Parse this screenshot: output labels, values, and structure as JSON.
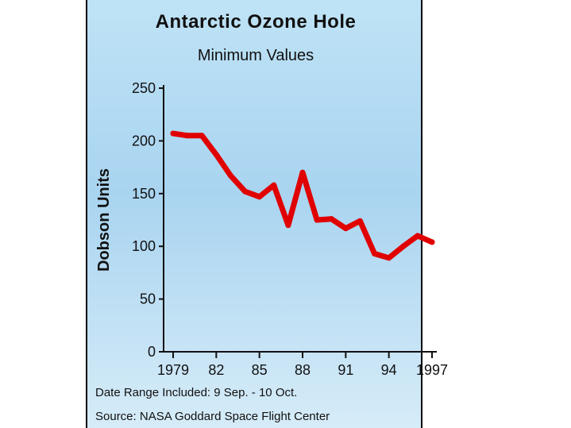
{
  "chart_data": {
    "type": "line",
    "title": "Antarctic Ozone Hole",
    "subtitle": "Minimum Values",
    "ylabel": "Dobson Units",
    "xlabel": "",
    "ylim": [
      0,
      250
    ],
    "xlim": [
      1979,
      1997
    ],
    "y_ticks": [
      0,
      50,
      100,
      150,
      200,
      250
    ],
    "x_ticks": [
      {
        "value": 1979,
        "label": "1979"
      },
      {
        "value": 1982,
        "label": "82"
      },
      {
        "value": 1985,
        "label": "85"
      },
      {
        "value": 1988,
        "label": "88"
      },
      {
        "value": 1991,
        "label": "91"
      },
      {
        "value": 1994,
        "label": "94"
      },
      {
        "value": 1997,
        "label": "1997"
      }
    ],
    "grid": false,
    "series": [
      {
        "color": "#e00000",
        "x": [
          1979,
          1980,
          1981,
          1982,
          1983,
          1984,
          1985,
          1986,
          1987,
          1988,
          1989,
          1990,
          1991,
          1992,
          1993,
          1994,
          1995,
          1996,
          1997
        ],
        "y": [
          207,
          205,
          205,
          187,
          167,
          152,
          147,
          158,
          120,
          170,
          125,
          126,
          117,
          124,
          93,
          89,
          100,
          110,
          104
        ]
      }
    ],
    "notes": [
      "Date Range Included: 9 Sep. - 10 Oct.",
      "Source:  NASA Goddard Space Flight Center"
    ],
    "background": "#a9d4f0"
  }
}
